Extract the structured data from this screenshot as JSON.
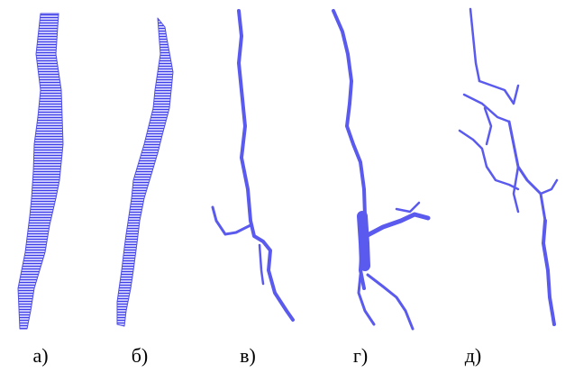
{
  "panels": [
    {
      "label": "а)"
    },
    {
      "label": "б)"
    },
    {
      "label": "в)"
    },
    {
      "label": "г)"
    },
    {
      "label": "д)"
    }
  ]
}
